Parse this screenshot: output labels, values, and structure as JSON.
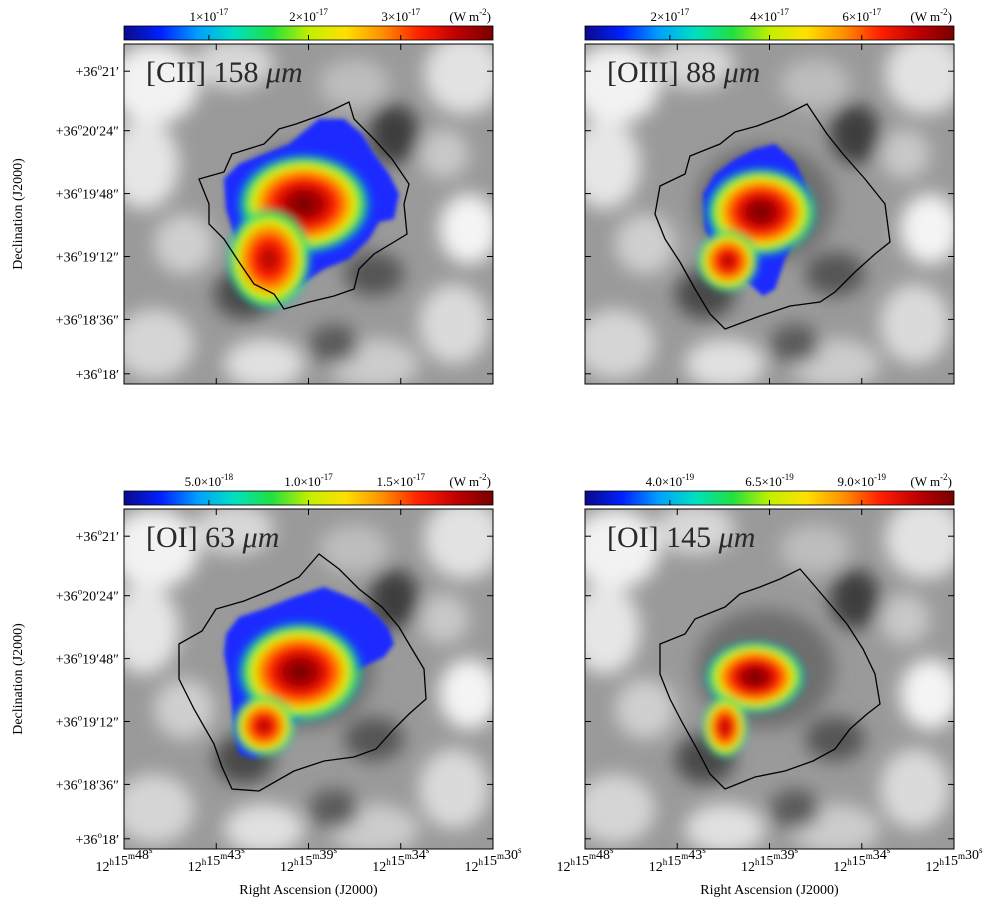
{
  "figure": {
    "y_axis_label": "Declination (J2000)",
    "x_axis_label": "Right Ascension (J2000)",
    "y_ticks": [
      {
        "deg": "+36",
        "min": "21",
        "sec": ""
      },
      {
        "deg": "+36",
        "min": "20",
        "sec": "24"
      },
      {
        "deg": "+36",
        "min": "19",
        "sec": "48"
      },
      {
        "deg": "+36",
        "min": "19",
        "sec": "12"
      },
      {
        "deg": "+36",
        "min": "18",
        "sec": "36"
      },
      {
        "deg": "+36",
        "min": "18",
        "sec": ""
      }
    ],
    "x_ticks": [
      {
        "h": "12",
        "m": "15",
        "s": "48"
      },
      {
        "h": "12",
        "m": "15",
        "s": "43"
      },
      {
        "h": "12",
        "m": "15",
        "s": "39"
      },
      {
        "h": "12",
        "m": "15",
        "s": "34"
      },
      {
        "h": "12",
        "m": "15",
        "s": "30"
      }
    ],
    "colormap": [
      "#0a0a8c",
      "#0020ff",
      "#00a0ff",
      "#00e0c0",
      "#20e040",
      "#c0f000",
      "#ffe000",
      "#ff9000",
      "#ff2000",
      "#c00000",
      "#780000"
    ],
    "panels": [
      {
        "title_prefix": "[CII] 158 ",
        "title_unit": "μm",
        "colorbar_labels": [
          {
            "mant": "1×10",
            "exp": "-17"
          },
          {
            "mant": "2×10",
            "exp": "-17"
          },
          {
            "mant": "3×10",
            "exp": "-17"
          }
        ],
        "colorbar_unit": {
          "pre": "(W m",
          "exp": "-2",
          "post": ")"
        }
      },
      {
        "title_prefix": "[OIII] 88 ",
        "title_unit": "μm",
        "colorbar_labels": [
          {
            "mant": "2×10",
            "exp": "-17"
          },
          {
            "mant": "4×10",
            "exp": "-17"
          },
          {
            "mant": "6×10",
            "exp": "-17"
          }
        ],
        "colorbar_unit": {
          "pre": "(W m",
          "exp": "-2",
          "post": ")"
        }
      },
      {
        "title_prefix": "[OI] 63 ",
        "title_unit": "μm",
        "colorbar_labels": [
          {
            "mant": "5.0×10",
            "exp": "-18"
          },
          {
            "mant": "1.0×10",
            "exp": "-17"
          },
          {
            "mant": "1.5×10",
            "exp": "-17"
          }
        ],
        "colorbar_unit": {
          "pre": "(W m",
          "exp": "-2",
          "post": ")"
        }
      },
      {
        "title_prefix": "[OI] 145 ",
        "title_unit": "μm",
        "colorbar_labels": [
          {
            "mant": "4.0×10",
            "exp": "-19"
          },
          {
            "mant": "6.5×10",
            "exp": "-19"
          },
          {
            "mant": "9.0×10",
            "exp": "-19"
          }
        ],
        "colorbar_unit": {
          "pre": "(W m",
          "exp": "-2",
          "post": ")"
        }
      }
    ]
  }
}
